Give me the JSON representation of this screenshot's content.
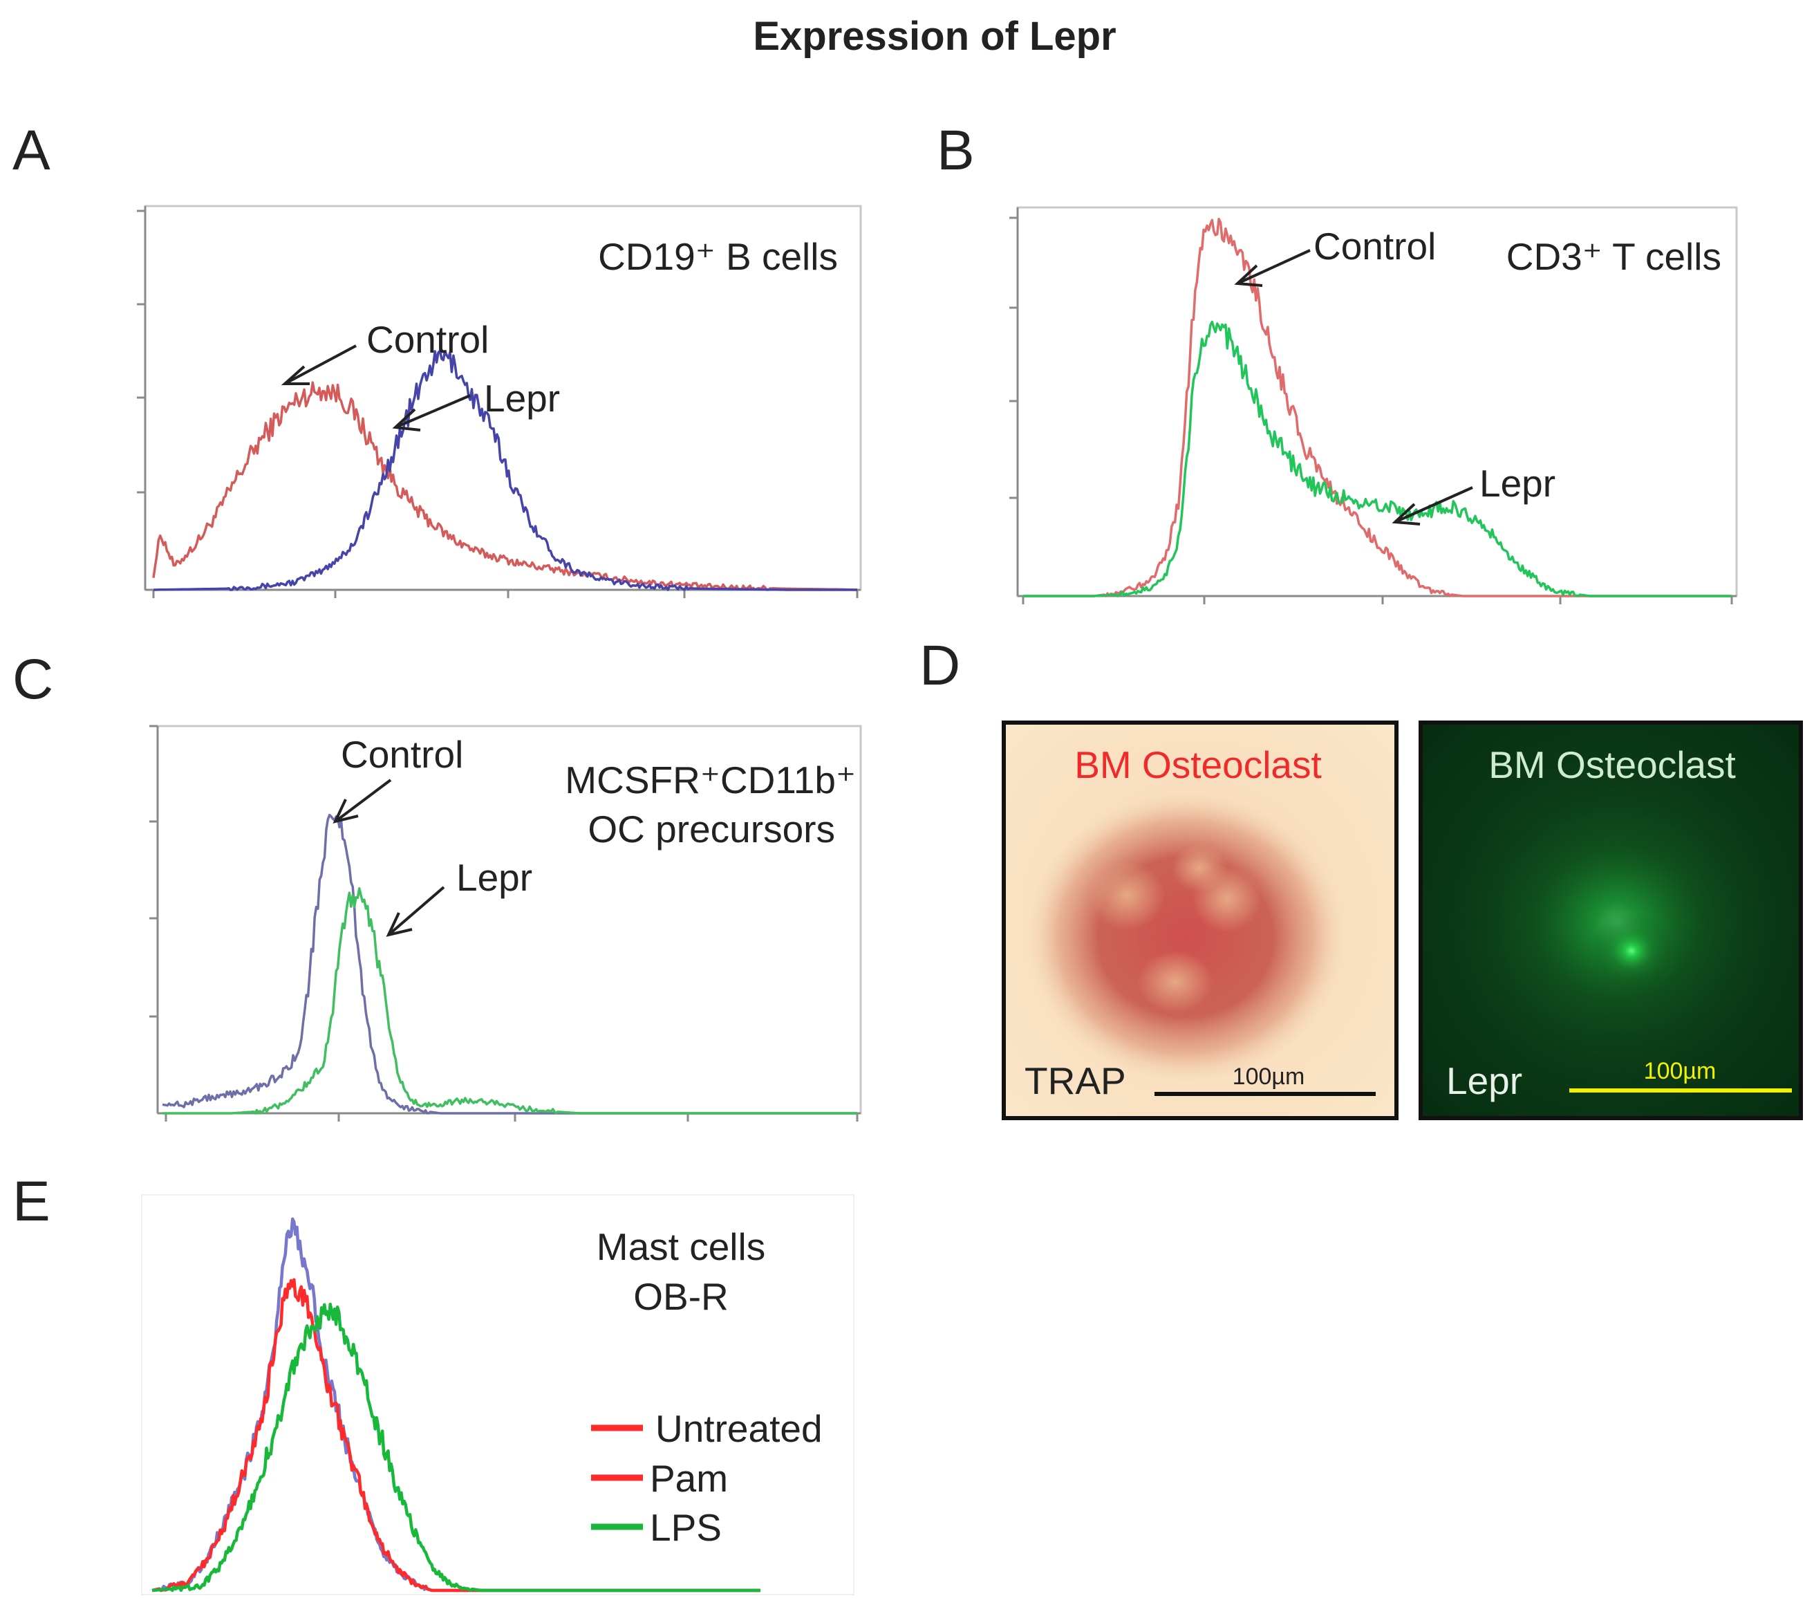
{
  "figure": {
    "title": "Expression  of Lepr",
    "panel_letters": [
      "A",
      "B",
      "C",
      "D",
      "E"
    ]
  },
  "chart_data": [
    {
      "panel": "A",
      "type": "line",
      "label": "CD19⁺ B cells",
      "xlim": [
        0,
        100
      ],
      "ylim": [
        0,
        100
      ],
      "series": [
        {
          "name": "Control",
          "color": "#d55b5b",
          "x": [
            0,
            1,
            3,
            6,
            9,
            12,
            15,
            18,
            21,
            24,
            26,
            28,
            30,
            32,
            34,
            36,
            38,
            40,
            42,
            44,
            46,
            48,
            50,
            52,
            55,
            58,
            62,
            66,
            70,
            74,
            78,
            82,
            86,
            90,
            94,
            98,
            100
          ],
          "y": [
            4,
            15,
            6,
            12,
            20,
            30,
            39,
            46,
            51,
            53,
            52,
            48,
            42,
            35,
            29,
            24,
            20,
            17,
            14,
            12,
            10,
            9,
            8,
            7,
            6,
            5,
            4,
            3,
            2,
            1.5,
            1,
            0.7,
            0.5,
            0.3,
            0.2,
            0.1,
            0
          ]
        },
        {
          "name": "Lepr",
          "color": "#4444aa",
          "x": [
            0,
            10,
            16,
            20,
            24,
            28,
            31,
            34,
            37,
            39,
            41,
            43,
            45,
            47,
            49,
            51,
            53,
            55,
            57,
            60,
            63,
            66,
            70,
            74,
            78,
            82,
            86,
            90,
            94,
            98,
            100
          ],
          "y": [
            0,
            0.3,
            1,
            2,
            5,
            11,
            22,
            36,
            50,
            58,
            62,
            59,
            52,
            46,
            38,
            28,
            20,
            14,
            9,
            5,
            3,
            2,
            1,
            0.5,
            0.3,
            0.2,
            0.1,
            0,
            0,
            0,
            0
          ]
        }
      ],
      "annotations": [
        "Control",
        "Lepr"
      ]
    },
    {
      "panel": "B",
      "type": "line",
      "label": "CD3⁺ T cells",
      "xlim": [
        0,
        100
      ],
      "ylim": [
        0,
        100
      ],
      "series": [
        {
          "name": "Control",
          "color": "#e06b6b",
          "x": [
            0,
            10,
            14,
            18,
            20,
            22,
            23,
            24,
            25,
            26,
            27,
            28,
            29,
            30,
            31,
            32,
            33,
            34,
            36,
            38,
            40,
            42,
            44,
            46,
            48,
            50,
            52,
            54,
            56,
            58,
            60,
            62,
            66,
            70,
            80,
            100
          ],
          "y": [
            0,
            0,
            1,
            4,
            10,
            25,
            50,
            75,
            92,
            96,
            98,
            97,
            95,
            92,
            88,
            85,
            80,
            72,
            60,
            48,
            38,
            32,
            26,
            22,
            18,
            14,
            10,
            6,
            3,
            1,
            0.5,
            0,
            0,
            0,
            0,
            0
          ]
        },
        {
          "name": "Lepr",
          "color": "#22c55a",
          "x": [
            0,
            10,
            14,
            18,
            20,
            22,
            23,
            24,
            25,
            26,
            27,
            28,
            29,
            30,
            31,
            32,
            33,
            34,
            36,
            38,
            40,
            42,
            44,
            46,
            48,
            50,
            52,
            54,
            56,
            58,
            60,
            62,
            64,
            66,
            68,
            70,
            72,
            74,
            76,
            78,
            80,
            84,
            90,
            100
          ],
          "y": [
            0,
            0,
            0.5,
            2,
            5,
            15,
            35,
            55,
            65,
            70,
            72,
            70,
            68,
            64,
            60,
            56,
            52,
            46,
            40,
            35,
            30,
            28,
            27,
            26,
            25,
            24,
            23,
            22,
            22,
            23,
            24,
            22,
            20,
            17,
            12,
            8,
            5,
            2,
            1,
            0.5,
            0,
            0,
            0,
            0
          ]
        }
      ],
      "annotations": [
        "Control",
        "Lepr"
      ]
    },
    {
      "panel": "C",
      "type": "line",
      "label": "MCSFR⁺CD11b⁺",
      "label2": "OC precursors",
      "xlim": [
        0,
        100
      ],
      "ylim": [
        0,
        100
      ],
      "series": [
        {
          "name": "Control",
          "color": "#6e6ea8",
          "x": [
            0,
            3,
            6,
            10,
            14,
            17,
            19,
            20,
            21,
            22,
            23,
            24,
            25,
            26,
            27,
            28,
            29,
            30,
            31,
            32,
            34,
            36,
            40,
            50,
            100
          ],
          "y": [
            3,
            2,
            4,
            5,
            7,
            10,
            14,
            20,
            32,
            50,
            65,
            75,
            77,
            73,
            62,
            45,
            30,
            18,
            10,
            5,
            2,
            1,
            0,
            0,
            0
          ]
        },
        {
          "name": "Lepr",
          "color": "#3fbf5f",
          "x": [
            0,
            10,
            14,
            17,
            19,
            21,
            23,
            24,
            25,
            26,
            27,
            28,
            29,
            30,
            31,
            32,
            33,
            34,
            35,
            36,
            38,
            40,
            42,
            44,
            47,
            50,
            53,
            56,
            60,
            65,
            100
          ],
          "y": [
            0,
            0,
            0.5,
            2,
            5,
            8,
            12,
            20,
            35,
            48,
            55,
            56,
            54,
            48,
            40,
            30,
            18,
            10,
            5,
            3,
            2,
            2.5,
            3,
            3.5,
            3,
            2,
            1,
            0.5,
            0,
            0,
            0
          ]
        }
      ],
      "annotations": [
        "Control",
        "Lepr"
      ]
    },
    {
      "panel": "E",
      "type": "line",
      "label": "Mast cells",
      "label2": "OB-R",
      "xlim": [
        0,
        100
      ],
      "ylim": [
        0,
        100
      ],
      "series": [
        {
          "name": "Untreated",
          "color": "#7777cc",
          "x": [
            0,
            6,
            9,
            12,
            15,
            18,
            20,
            21,
            22,
            23,
            24,
            25,
            26,
            27,
            28,
            30,
            32,
            34,
            36,
            38,
            40,
            42,
            44,
            46,
            50,
            60,
            100
          ],
          "y": [
            0,
            2,
            8,
            18,
            30,
            46,
            62,
            78,
            90,
            96,
            92,
            86,
            80,
            72,
            62,
            50,
            38,
            28,
            18,
            10,
            6,
            3,
            1,
            0,
            0,
            0,
            0
          ]
        },
        {
          "name": "Pam",
          "color": "#ff2a2a",
          "x": [
            0,
            6,
            9,
            12,
            15,
            18,
            20,
            21,
            22,
            23,
            24,
            25,
            26,
            27,
            28,
            30,
            32,
            34,
            36,
            38,
            40,
            42,
            44,
            46,
            50,
            60,
            100
          ],
          "y": [
            0,
            2,
            8,
            17,
            30,
            46,
            60,
            70,
            78,
            80,
            78,
            76,
            72,
            66,
            58,
            48,
            38,
            28,
            18,
            11,
            6,
            3,
            1,
            0,
            0,
            0,
            0
          ]
        },
        {
          "name": "LPS",
          "color": "#18b83a",
          "x": [
            0,
            8,
            11,
            14,
            17,
            20,
            22,
            24,
            26,
            28,
            29,
            30,
            31,
            32,
            34,
            36,
            38,
            40,
            42,
            44,
            46,
            48,
            50,
            54,
            60,
            100
          ],
          "y": [
            0,
            1,
            6,
            14,
            26,
            40,
            52,
            62,
            68,
            72,
            73,
            72,
            70,
            66,
            58,
            48,
            38,
            28,
            20,
            12,
            6,
            3,
            1,
            0,
            0,
            0
          ]
        }
      ],
      "legend": [
        "Untreated",
        "Pam",
        "LPS"
      ]
    }
  ],
  "panel_d": {
    "trap": {
      "title": "BM Osteoclast",
      "stain": "TRAP",
      "scale": "100µm"
    },
    "lepr": {
      "title": "BM Osteoclast",
      "stain": "Lepr",
      "scale": "100µm"
    }
  }
}
